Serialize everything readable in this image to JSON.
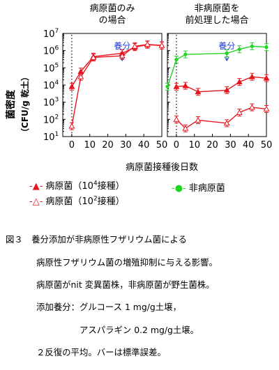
{
  "chart_data": [
    {
      "panel_title_lines": [
        "病原菌のみ",
        "の場合"
      ],
      "type": "line",
      "annotation": "養分",
      "annotation_x": 28,
      "xlim": [
        -5,
        50
      ],
      "ylim_log10": [
        1,
        7
      ],
      "series": [
        {
          "key": "p4",
          "marker": "filled-triangle",
          "x": [
            0,
            5,
            12,
            28,
            35,
            42,
            50
          ],
          "y": [
            8000,
            60000,
            450000,
            700000,
            1600000,
            2200000,
            2000000
          ]
        },
        {
          "key": "p2",
          "marker": "open-triangle",
          "x": [
            0,
            5,
            12,
            28,
            35,
            42,
            50
          ],
          "y": [
            40,
            30000,
            400000,
            500000,
            1800000,
            2300000,
            2000000
          ]
        }
      ]
    },
    {
      "panel_title_lines": [
        "非病原菌を",
        "前処理した場合"
      ],
      "type": "line",
      "annotation": "養分",
      "annotation_x": 28,
      "xlim": [
        -5,
        50
      ],
      "ylim_log10": [
        1,
        7
      ],
      "series": [
        {
          "key": "np",
          "marker": "filled-circle",
          "x": [
            -5,
            0,
            5,
            28,
            35,
            42,
            50
          ],
          "y": [
            8000,
            300000,
            600000,
            700000,
            1200000,
            1800000,
            1600000
          ]
        },
        {
          "key": "p4",
          "marker": "filled-triangle",
          "x": [
            0,
            5,
            12,
            28,
            35,
            42,
            50
          ],
          "y": [
            8000,
            9000,
            4000,
            5000,
            15000,
            30000,
            25000
          ]
        },
        {
          "key": "p2",
          "marker": "open-triangle",
          "x": [
            0,
            5,
            12,
            28,
            35,
            42,
            50
          ],
          "y": [
            100,
            30,
            90,
            60,
            250,
            500,
            400
          ]
        }
      ]
    }
  ],
  "axes": {
    "y_ticks": [
      {
        "m": "10",
        "e": "7"
      },
      {
        "m": "10",
        "e": "6"
      },
      {
        "m": "10",
        "e": "5"
      },
      {
        "m": "10",
        "e": "4"
      },
      {
        "m": "10",
        "e": "3"
      },
      {
        "m": "10",
        "e": "2"
      },
      {
        "m": "10",
        "e": "1"
      }
    ],
    "x_ticks": [
      "0",
      "10",
      "20",
      "30",
      "40",
      "50"
    ],
    "y_label": "菌密度",
    "y_unit": "（CFU/g 乾土）",
    "x_label": "病原菌接種後日数"
  },
  "colors": {
    "pathogen": "#e8141e",
    "nonpathogen": "#22d422"
  },
  "legend": {
    "p4": {
      "prefix": "病原菌（10",
      "exp": "4",
      "suffix": "接種）"
    },
    "p2": {
      "prefix": "病原菌（10",
      "exp": "2",
      "suffix": "接種）"
    },
    "np": "非病原菌"
  },
  "caption": {
    "lines": [
      "図３　養分添加が非病原性フザリウム菌による",
      "病原性フザリウム菌の増殖抑制に与える影響。",
      "病原菌がnit 変異菌株，非病原菌が野生菌株。",
      "添加養分：グルコース 1 mg/g土壌，",
      "　　　　　アスパラギン 0.2 mg/g土壌。",
      "２反復の平均。バーは標準誤差。"
    ]
  }
}
